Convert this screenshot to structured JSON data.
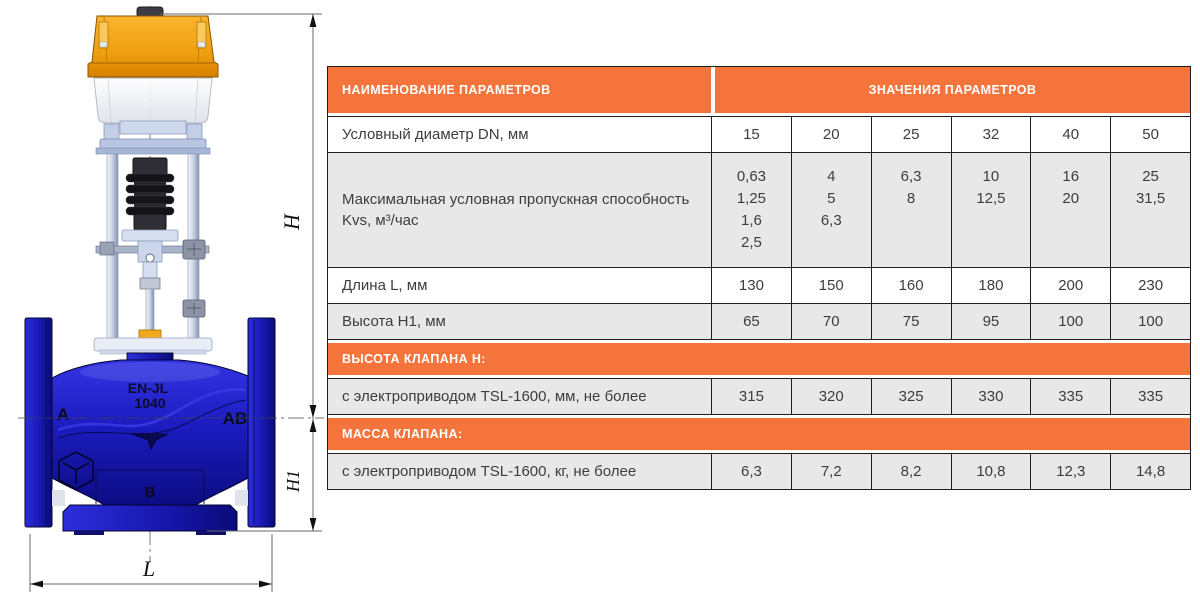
{
  "drawing": {
    "dim_h": "H",
    "dim_h1": "H1",
    "dim_l": "L",
    "port_a": "A",
    "port_ab": "AB",
    "port_b": "B",
    "body_marking_line1": "EN-JL",
    "body_marking_line2": "1040"
  },
  "table": {
    "header": {
      "name": "НАИМЕНОВАНИЕ ПАРАМЕТРОВ",
      "values": "ЗНАЧЕНИЯ ПАРАМЕТРОВ"
    },
    "rows": [
      {
        "type": "data",
        "bg": "white",
        "label": "Условный диаметр DN, мм",
        "values": [
          "15",
          "20",
          "25",
          "32",
          "40",
          "50"
        ]
      },
      {
        "type": "data",
        "bg": "gray",
        "multiline": true,
        "label": "Максимальная условная пропускная способность Kvs, м³/час",
        "values": [
          "0,63\n1,25\n1,6\n2,5",
          "4\n5\n6,3",
          "6,3\n8",
          "10\n12,5",
          "16\n20",
          "25\n31,5"
        ]
      },
      {
        "type": "data",
        "bg": "white",
        "label": "Длина L, мм",
        "values": [
          "130",
          "150",
          "160",
          "180",
          "200",
          "230"
        ]
      },
      {
        "type": "data",
        "bg": "gray",
        "label": "Высота H1, мм",
        "values": [
          "65",
          "70",
          "75",
          "95",
          "100",
          "100"
        ]
      },
      {
        "type": "section",
        "label": "ВЫСОТА КЛАПАНА H:"
      },
      {
        "type": "data",
        "bg": "gray",
        "label": "с электроприводом TSL-1600, мм, не более",
        "values": [
          "315",
          "320",
          "325",
          "330",
          "335",
          "335"
        ]
      },
      {
        "type": "section",
        "label": "МАССА КЛАПАНА:"
      },
      {
        "type": "data",
        "bg": "gray",
        "label": "с электроприводом TSL-1600, кг, не более",
        "values": [
          "6,3",
          "7,2",
          "8,2",
          "10,8",
          "12,3",
          "14,8"
        ]
      }
    ]
  }
}
